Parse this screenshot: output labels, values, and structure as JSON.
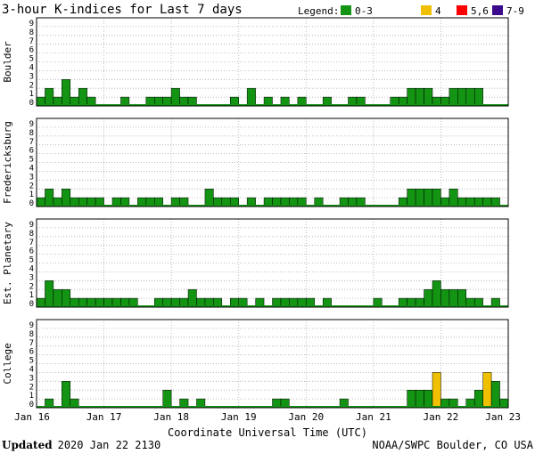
{
  "chart_data": {
    "type": "bar",
    "title": "3-hour K-indices for Last 7 days",
    "legend": {
      "title": "Legend:",
      "items": [
        {
          "label": "0-3",
          "color": "#139413"
        },
        {
          "label": "4",
          "color": "#f0c000"
        },
        {
          "label": "5,6",
          "color": "#ff0000"
        },
        {
          "label": "7-9",
          "color": "#3a0a8a"
        }
      ]
    },
    "xlabel": "Coordinate Universal Time (UTC)",
    "x_tick_labels": [
      "Jan 16",
      "Jan 17",
      "Jan 18",
      "Jan 19",
      "Jan 20",
      "Jan 21",
      "Jan 22",
      "Jan 23"
    ],
    "ylim": [
      0,
      9
    ],
    "y_ticks": [
      0,
      1,
      2,
      3,
      4,
      5,
      6,
      7,
      8,
      9
    ],
    "grid": true,
    "bins_per_day": 8,
    "panels": [
      {
        "name": "Boulder",
        "values": [
          1,
          2,
          1,
          3,
          1,
          2,
          1,
          0,
          0,
          0,
          1,
          0,
          0,
          1,
          1,
          1,
          2,
          1,
          1,
          0,
          0,
          0,
          0,
          1,
          0,
          2,
          0,
          1,
          0,
          1,
          0,
          1,
          0,
          0,
          1,
          0,
          0,
          1,
          1,
          0,
          0,
          0,
          1,
          1,
          2,
          2,
          2,
          1,
          1,
          2,
          2,
          2,
          2,
          0,
          0,
          0
        ]
      },
      {
        "name": "Fredericksburg",
        "values": [
          1,
          2,
          1,
          2,
          1,
          1,
          1,
          1,
          0,
          1,
          1,
          0,
          1,
          1,
          1,
          0,
          1,
          1,
          0,
          0,
          2,
          1,
          1,
          1,
          0,
          1,
          0,
          1,
          1,
          1,
          1,
          1,
          0,
          1,
          0,
          0,
          1,
          1,
          1,
          0,
          0,
          0,
          0,
          1,
          2,
          2,
          2,
          2,
          1,
          2,
          1,
          1,
          1,
          1,
          1,
          0
        ]
      },
      {
        "name": "Est. Planetary",
        "values": [
          1,
          3,
          2,
          2,
          1,
          1,
          1,
          1,
          1,
          1,
          1,
          1,
          0,
          0,
          1,
          1,
          1,
          1,
          2,
          1,
          1,
          1,
          0,
          1,
          1,
          0,
          1,
          0,
          1,
          1,
          1,
          1,
          1,
          0,
          1,
          0,
          0,
          0,
          0,
          0,
          1,
          0,
          0,
          1,
          1,
          1,
          2,
          3,
          2,
          2,
          2,
          1,
          1,
          0,
          1,
          0
        ]
      },
      {
        "name": "College",
        "values": [
          0,
          1,
          0,
          3,
          1,
          0,
          0,
          0,
          0,
          0,
          0,
          0,
          0,
          0,
          0,
          2,
          0,
          1,
          0,
          1,
          0,
          0,
          0,
          0,
          0,
          0,
          0,
          0,
          1,
          1,
          0,
          0,
          0,
          0,
          0,
          0,
          1,
          0,
          0,
          0,
          0,
          0,
          0,
          0,
          2,
          2,
          2,
          4,
          1,
          1,
          0,
          1,
          2,
          4,
          3,
          1
        ]
      }
    ]
  },
  "footer": {
    "updated_label": "Updated",
    "updated_value": "2020 Jan 22 2130",
    "credit": "NOAA/SWPC Boulder, CO USA"
  }
}
